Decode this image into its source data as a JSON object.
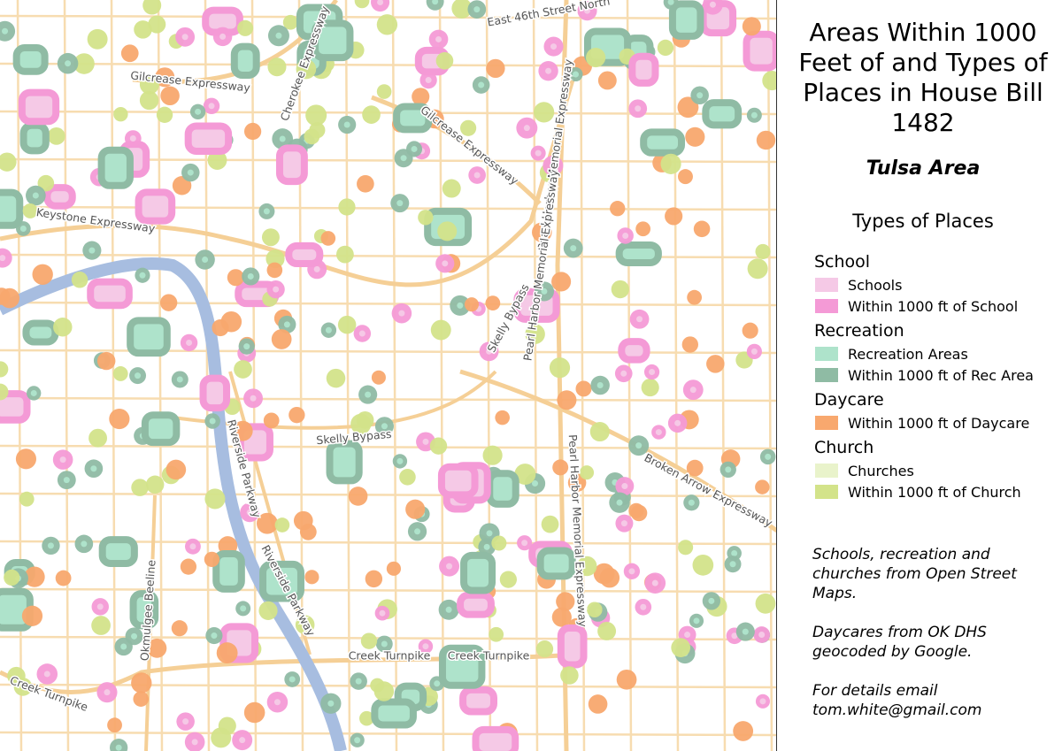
{
  "title": "Areas Within 1000 Feet of and  Types of Places in House Bill 1482",
  "subtitle": "Tulsa Area",
  "legend": {
    "title": "Types of Places",
    "groups": [
      {
        "name": "School",
        "items": [
          {
            "label": "Schools",
            "color": "#f5c9e6"
          },
          {
            "label": "Within 1000 ft of School",
            "color": "#f49ad6"
          }
        ]
      },
      {
        "name": "Recreation",
        "items": [
          {
            "label": "Recreation Areas",
            "color": "#aee3cb"
          },
          {
            "label": "Within 1000 ft of Rec Area",
            "color": "#8fbba4"
          }
        ]
      },
      {
        "name": "Daycare",
        "items": [
          {
            "label": "Within 1000 ft of Daycare",
            "color": "#f8a86e"
          }
        ]
      },
      {
        "name": "Church",
        "items": [
          {
            "label": "Churches",
            "color": "#e9f3cb"
          },
          {
            "label": "Within 1000 ft of Church",
            "color": "#d3e38a"
          }
        ]
      }
    ]
  },
  "notes": [
    "Schools, recreation and churches from Open Street Maps.",
    "Daycares from OK DHS geocoded by Google.",
    "For details email tom.white@gmail.com"
  ],
  "map_labels": [
    "East 46th Street North",
    "Gilcrease Expressway",
    "Cherokee Expressway",
    "Gilcrease Expressway",
    "Pearl Harbor Memorial Expressway",
    "Keystone Expressway",
    "Skelly Bypass",
    "Pearl Harbor Memorial Expressway",
    "Pearl Harbor Memorial Expressway",
    "Skelly Bypass",
    "Riverside Parkway",
    "Broken Arrow Expressway",
    "Riverside Parkway",
    "Okmulgee Beeline",
    "Creek Turnpike",
    "Creek Turnpike",
    "Creek Turnpike"
  ]
}
